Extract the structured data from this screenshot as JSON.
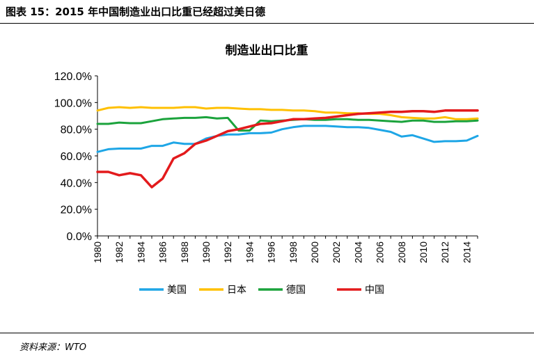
{
  "figure_title": "图表 15：2015 年中国制造业出口比重已经超过美日德",
  "source": "资料来源：WTO",
  "chart_data": {
    "type": "line",
    "title": "制造业出口比重",
    "xlabel": "",
    "ylabel": "",
    "ylim": [
      0,
      120
    ],
    "xlim": [
      1980,
      2015
    ],
    "y_ticks": [
      "0.0%",
      "20.0%",
      "40.0%",
      "60.0%",
      "80.0%",
      "100.0%",
      "120.0%"
    ],
    "x_ticks": [
      "1980",
      "1982",
      "1984",
      "1986",
      "1988",
      "1990",
      "1992",
      "1994",
      "1996",
      "1998",
      "2000",
      "2002",
      "2004",
      "2006",
      "2008",
      "2010",
      "2012",
      "2014"
    ],
    "grid": false,
    "legend_position": "bottom",
    "x": [
      1980,
      1981,
      1982,
      1983,
      1984,
      1985,
      1986,
      1987,
      1988,
      1989,
      1990,
      1991,
      1992,
      1993,
      1994,
      1995,
      1996,
      1997,
      1998,
      1999,
      2000,
      2001,
      2002,
      2003,
      2004,
      2005,
      2006,
      2007,
      2008,
      2009,
      2010,
      2011,
      2012,
      2013,
      2014,
      2015
    ],
    "series": [
      {
        "name": "美国",
        "color": "#1EA6E6",
        "values": [
          63,
          65,
          65.5,
          65.5,
          65.5,
          67.5,
          67.5,
          70,
          69,
          69,
          73,
          75,
          76,
          76,
          77,
          77,
          77.5,
          80,
          81.5,
          82.5,
          82.5,
          82.5,
          82,
          81.5,
          81.5,
          81,
          79.5,
          78,
          74.5,
          75.5,
          73,
          70.5,
          71,
          71,
          71.5,
          75
        ]
      },
      {
        "name": "日本",
        "color": "#FFC000",
        "values": [
          94,
          96,
          96.5,
          96,
          96.5,
          96,
          96,
          96,
          96.5,
          96.5,
          95.5,
          96,
          96,
          95.5,
          95,
          95,
          94.5,
          94.5,
          94,
          94,
          93.5,
          92.5,
          92.5,
          92,
          92,
          91.5,
          91.5,
          90.5,
          89,
          88.5,
          88,
          88,
          89,
          87.5,
          87.5,
          88
        ]
      },
      {
        "name": "德国",
        "color": "#1BA33C",
        "values": [
          84,
          84,
          85,
          84.5,
          84.5,
          86,
          87.5,
          88,
          88.5,
          88.5,
          89,
          88,
          88.5,
          79,
          79,
          86.5,
          86,
          86.5,
          87,
          87.5,
          87,
          87,
          87.5,
          87.5,
          87,
          87,
          86.5,
          86,
          85.5,
          86.5,
          86.5,
          85.5,
          85.5,
          86,
          86,
          86.5
        ]
      },
      {
        "name": "中国",
        "color": "#E31A1C",
        "values": [
          48,
          48,
          45.5,
          47,
          45.5,
          36.5,
          43,
          58,
          62,
          69,
          71.5,
          75,
          78.5,
          80,
          82,
          84,
          84.5,
          86,
          87.5,
          87.5,
          88,
          88.5,
          89.5,
          90.5,
          91.5,
          92,
          92.5,
          93,
          93,
          93.5,
          93.5,
          93,
          94,
          94,
          94,
          94
        ]
      }
    ]
  }
}
